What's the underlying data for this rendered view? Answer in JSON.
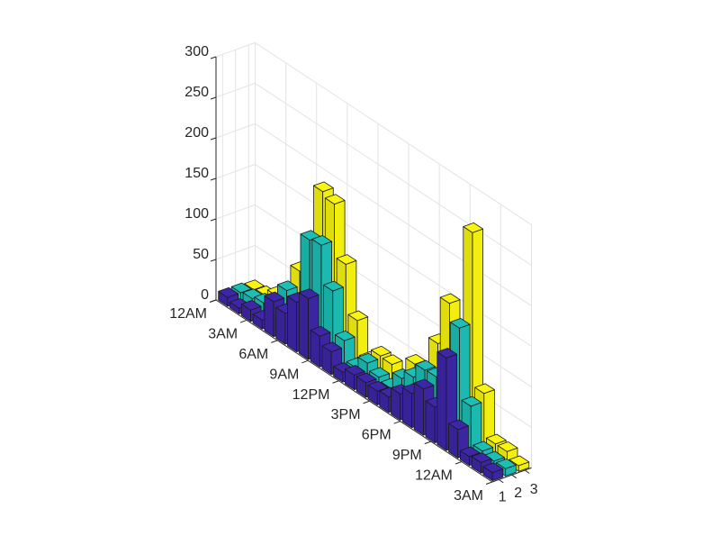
{
  "chart_data": {
    "type": "bar3",
    "title": "",
    "xlabel": "",
    "ylabel": "",
    "zlabel": "",
    "row_tick_labels": [
      "12AM",
      "3AM",
      "6AM",
      "9AM",
      "12PM",
      "3PM",
      "6PM",
      "9PM",
      "12AM",
      "3AM"
    ],
    "column_tick_labels": [
      "1",
      "2",
      "3"
    ],
    "z_ticks": [
      0,
      50,
      100,
      150,
      200,
      250,
      300
    ],
    "zlim": [
      0,
      300
    ],
    "grid": true,
    "series_colors": [
      "#3E26A8",
      "#1CBFB5",
      "#F9F50F"
    ],
    "values": [
      [
        11,
        11,
        9
      ],
      [
        7,
        13,
        11
      ],
      [
        14,
        17,
        20
      ],
      [
        11,
        13,
        9
      ],
      [
        43,
        51,
        69
      ],
      [
        38,
        46,
        76
      ],
      [
        61,
        132,
        186
      ],
      [
        75,
        135,
        180
      ],
      [
        38,
        88,
        115
      ],
      [
        28,
        36,
        55
      ],
      [
        12,
        12,
        14
      ],
      [
        18,
        27,
        30
      ],
      [
        18,
        19,
        29
      ],
      [
        17,
        15,
        18
      ],
      [
        19,
        36,
        48
      ],
      [
        32,
        47,
        10
      ],
      [
        42,
        65,
        92
      ],
      [
        57,
        66,
        151
      ],
      [
        44,
        55,
        90
      ],
      [
        114,
        145,
        257
      ],
      [
        35,
        58,
        68
      ],
      [
        11,
        12,
        15
      ],
      [
        13,
        9,
        15
      ],
      [
        10,
        9,
        7
      ]
    ]
  }
}
